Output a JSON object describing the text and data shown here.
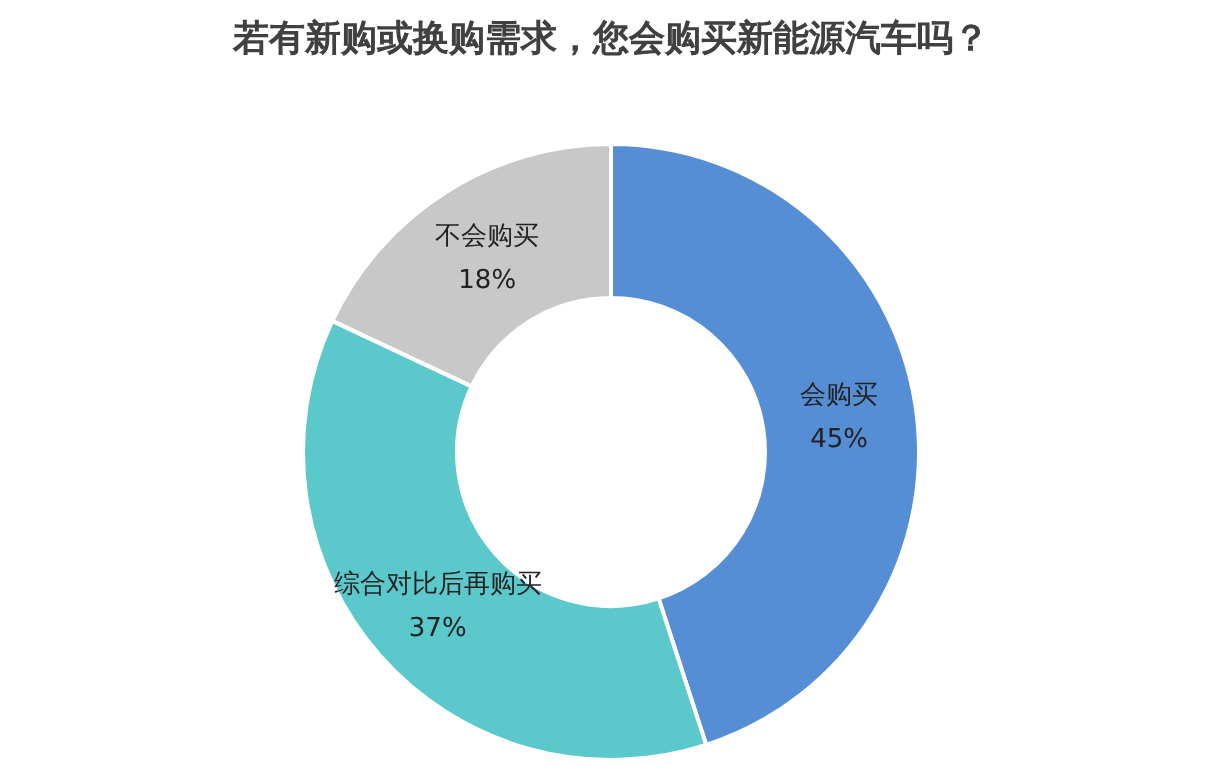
{
  "chart_data": {
    "type": "donut",
    "title": "若有新购或换购需求，您会购买新能源汽车吗？",
    "categories": [
      "会购买",
      "综合对比后再购买",
      "不会购买"
    ],
    "values": [
      45,
      37,
      18
    ],
    "value_labels": [
      "45%",
      "37%",
      "18%"
    ],
    "colors": [
      "#558ed5",
      "#5bc8cc",
      "#c8c8c8"
    ],
    "legend": false
  }
}
